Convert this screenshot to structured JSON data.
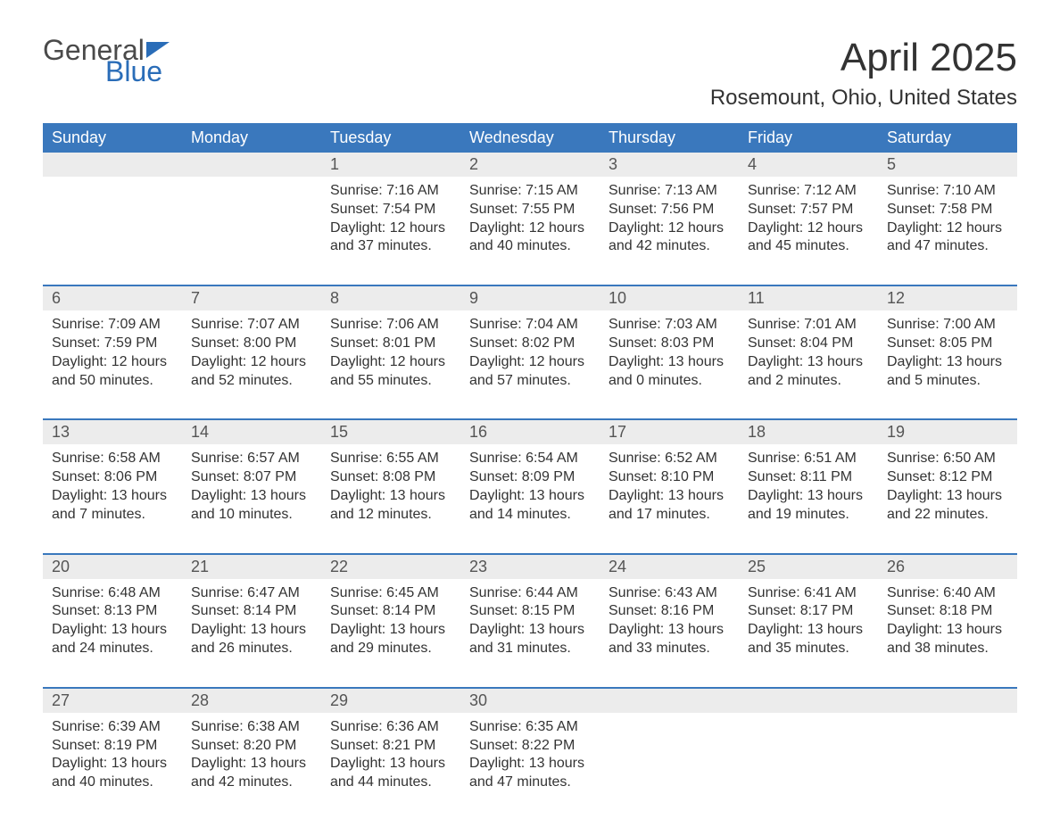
{
  "logo": {
    "word1": "General",
    "word2": "Blue"
  },
  "title": "April 2025",
  "location": "Rosemount, Ohio, United States",
  "colors": {
    "header_bg": "#3a78bd",
    "header_text": "#ffffff",
    "daynum_bg": "#ececec",
    "text": "#333333",
    "logo_blue": "#2a6db8",
    "logo_gray": "#4a4a4a",
    "page_bg": "#ffffff"
  },
  "fonts": {
    "title_size_pt": 33,
    "location_size_pt": 18,
    "dow_size_pt": 14,
    "daynum_size_pt": 14,
    "body_size_pt": 12
  },
  "days_of_week": [
    "Sunday",
    "Monday",
    "Tuesday",
    "Wednesday",
    "Thursday",
    "Friday",
    "Saturday"
  ],
  "weeks": [
    [
      null,
      null,
      {
        "n": "1",
        "sr": "Sunrise: 7:16 AM",
        "ss": "Sunset: 7:54 PM",
        "d1": "Daylight: 12 hours",
        "d2": "and 37 minutes."
      },
      {
        "n": "2",
        "sr": "Sunrise: 7:15 AM",
        "ss": "Sunset: 7:55 PM",
        "d1": "Daylight: 12 hours",
        "d2": "and 40 minutes."
      },
      {
        "n": "3",
        "sr": "Sunrise: 7:13 AM",
        "ss": "Sunset: 7:56 PM",
        "d1": "Daylight: 12 hours",
        "d2": "and 42 minutes."
      },
      {
        "n": "4",
        "sr": "Sunrise: 7:12 AM",
        "ss": "Sunset: 7:57 PM",
        "d1": "Daylight: 12 hours",
        "d2": "and 45 minutes."
      },
      {
        "n": "5",
        "sr": "Sunrise: 7:10 AM",
        "ss": "Sunset: 7:58 PM",
        "d1": "Daylight: 12 hours",
        "d2": "and 47 minutes."
      }
    ],
    [
      {
        "n": "6",
        "sr": "Sunrise: 7:09 AM",
        "ss": "Sunset: 7:59 PM",
        "d1": "Daylight: 12 hours",
        "d2": "and 50 minutes."
      },
      {
        "n": "7",
        "sr": "Sunrise: 7:07 AM",
        "ss": "Sunset: 8:00 PM",
        "d1": "Daylight: 12 hours",
        "d2": "and 52 minutes."
      },
      {
        "n": "8",
        "sr": "Sunrise: 7:06 AM",
        "ss": "Sunset: 8:01 PM",
        "d1": "Daylight: 12 hours",
        "d2": "and 55 minutes."
      },
      {
        "n": "9",
        "sr": "Sunrise: 7:04 AM",
        "ss": "Sunset: 8:02 PM",
        "d1": "Daylight: 12 hours",
        "d2": "and 57 minutes."
      },
      {
        "n": "10",
        "sr": "Sunrise: 7:03 AM",
        "ss": "Sunset: 8:03 PM",
        "d1": "Daylight: 13 hours",
        "d2": "and 0 minutes."
      },
      {
        "n": "11",
        "sr": "Sunrise: 7:01 AM",
        "ss": "Sunset: 8:04 PM",
        "d1": "Daylight: 13 hours",
        "d2": "and 2 minutes."
      },
      {
        "n": "12",
        "sr": "Sunrise: 7:00 AM",
        "ss": "Sunset: 8:05 PM",
        "d1": "Daylight: 13 hours",
        "d2": "and 5 minutes."
      }
    ],
    [
      {
        "n": "13",
        "sr": "Sunrise: 6:58 AM",
        "ss": "Sunset: 8:06 PM",
        "d1": "Daylight: 13 hours",
        "d2": "and 7 minutes."
      },
      {
        "n": "14",
        "sr": "Sunrise: 6:57 AM",
        "ss": "Sunset: 8:07 PM",
        "d1": "Daylight: 13 hours",
        "d2": "and 10 minutes."
      },
      {
        "n": "15",
        "sr": "Sunrise: 6:55 AM",
        "ss": "Sunset: 8:08 PM",
        "d1": "Daylight: 13 hours",
        "d2": "and 12 minutes."
      },
      {
        "n": "16",
        "sr": "Sunrise: 6:54 AM",
        "ss": "Sunset: 8:09 PM",
        "d1": "Daylight: 13 hours",
        "d2": "and 14 minutes."
      },
      {
        "n": "17",
        "sr": "Sunrise: 6:52 AM",
        "ss": "Sunset: 8:10 PM",
        "d1": "Daylight: 13 hours",
        "d2": "and 17 minutes."
      },
      {
        "n": "18",
        "sr": "Sunrise: 6:51 AM",
        "ss": "Sunset: 8:11 PM",
        "d1": "Daylight: 13 hours",
        "d2": "and 19 minutes."
      },
      {
        "n": "19",
        "sr": "Sunrise: 6:50 AM",
        "ss": "Sunset: 8:12 PM",
        "d1": "Daylight: 13 hours",
        "d2": "and 22 minutes."
      }
    ],
    [
      {
        "n": "20",
        "sr": "Sunrise: 6:48 AM",
        "ss": "Sunset: 8:13 PM",
        "d1": "Daylight: 13 hours",
        "d2": "and 24 minutes."
      },
      {
        "n": "21",
        "sr": "Sunrise: 6:47 AM",
        "ss": "Sunset: 8:14 PM",
        "d1": "Daylight: 13 hours",
        "d2": "and 26 minutes."
      },
      {
        "n": "22",
        "sr": "Sunrise: 6:45 AM",
        "ss": "Sunset: 8:14 PM",
        "d1": "Daylight: 13 hours",
        "d2": "and 29 minutes."
      },
      {
        "n": "23",
        "sr": "Sunrise: 6:44 AM",
        "ss": "Sunset: 8:15 PM",
        "d1": "Daylight: 13 hours",
        "d2": "and 31 minutes."
      },
      {
        "n": "24",
        "sr": "Sunrise: 6:43 AM",
        "ss": "Sunset: 8:16 PM",
        "d1": "Daylight: 13 hours",
        "d2": "and 33 minutes."
      },
      {
        "n": "25",
        "sr": "Sunrise: 6:41 AM",
        "ss": "Sunset: 8:17 PM",
        "d1": "Daylight: 13 hours",
        "d2": "and 35 minutes."
      },
      {
        "n": "26",
        "sr": "Sunrise: 6:40 AM",
        "ss": "Sunset: 8:18 PM",
        "d1": "Daylight: 13 hours",
        "d2": "and 38 minutes."
      }
    ],
    [
      {
        "n": "27",
        "sr": "Sunrise: 6:39 AM",
        "ss": "Sunset: 8:19 PM",
        "d1": "Daylight: 13 hours",
        "d2": "and 40 minutes."
      },
      {
        "n": "28",
        "sr": "Sunrise: 6:38 AM",
        "ss": "Sunset: 8:20 PM",
        "d1": "Daylight: 13 hours",
        "d2": "and 42 minutes."
      },
      {
        "n": "29",
        "sr": "Sunrise: 6:36 AM",
        "ss": "Sunset: 8:21 PM",
        "d1": "Daylight: 13 hours",
        "d2": "and 44 minutes."
      },
      {
        "n": "30",
        "sr": "Sunrise: 6:35 AM",
        "ss": "Sunset: 8:22 PM",
        "d1": "Daylight: 13 hours",
        "d2": "and 47 minutes."
      },
      null,
      null,
      null
    ]
  ]
}
